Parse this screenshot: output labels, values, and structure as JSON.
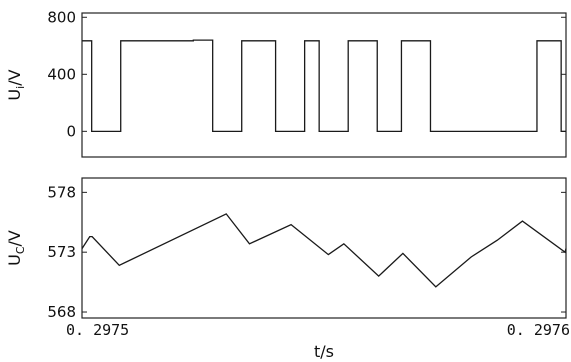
{
  "chart_data": [
    {
      "type": "line",
      "ylabel_main": "U",
      "ylabel_sub": "i",
      "ylabel_unit": "/V",
      "xlim": [
        0.2975,
        0.2976
      ],
      "ylim": [
        -180,
        830
      ],
      "yticks": [
        {
          "value": 800,
          "label": "800"
        },
        {
          "value": 400,
          "label": "400"
        },
        {
          "value": 0,
          "label": "0"
        }
      ],
      "grid": false,
      "series": [
        {
          "color": "#1a1a1a",
          "x": [
            0.2975,
            0.297502,
            0.297502,
            0.297508,
            0.297508,
            0.297523,
            0.297523,
            0.297527,
            0.297527,
            0.297533,
            0.297533,
            0.29754,
            0.29754,
            0.297546,
            0.297546,
            0.297549,
            0.297549,
            0.297555,
            0.297555,
            0.297561,
            0.297561,
            0.297566,
            0.297566,
            0.297572,
            0.297572,
            0.297594,
            0.297594,
            0.297599,
            0.297599,
            0.2976
          ],
          "y": [
            635,
            635,
            0,
            0,
            635,
            635,
            640,
            640,
            0,
            0,
            635,
            635,
            0,
            0,
            635,
            635,
            0,
            0,
            635,
            635,
            0,
            0,
            635,
            635,
            0,
            0,
            635,
            635,
            0,
            0
          ]
        }
      ]
    },
    {
      "type": "line",
      "ylabel_main": "U",
      "ylabel_sub": "C",
      "ylabel_unit": "/V",
      "xlabel": "t/s",
      "xlim": [
        0.2975,
        0.2976
      ],
      "ylim": [
        567.5,
        579.2
      ],
      "yticks": [
        {
          "value": 578,
          "label": "578"
        },
        {
          "value": 573,
          "label": "573"
        },
        {
          "value": 568,
          "label": "568"
        }
      ],
      "xticks": [
        {
          "value": 0.2975,
          "label": "0. 2975"
        },
        {
          "value": 0.2976,
          "label": "0. 2976"
        }
      ],
      "grid": false,
      "series": [
        {
          "color": "#1a1a1a",
          "x": [
            0.2975,
            0.2975016,
            0.2975021,
            0.2975077,
            0.2975298,
            0.2975346,
            0.2975432,
            0.2975509,
            0.2975541,
            0.2975613,
            0.2975663,
            0.2975731,
            0.2975804,
            0.2975858,
            0.297591,
            0.2975998,
            0.2976
          ],
          "y": [
            573.3,
            574.3,
            574.3,
            571.9,
            576.2,
            573.7,
            575.3,
            572.8,
            573.7,
            571.0,
            572.9,
            570.1,
            572.6,
            574.0,
            575.6,
            573.0,
            573.3
          ]
        }
      ]
    }
  ]
}
